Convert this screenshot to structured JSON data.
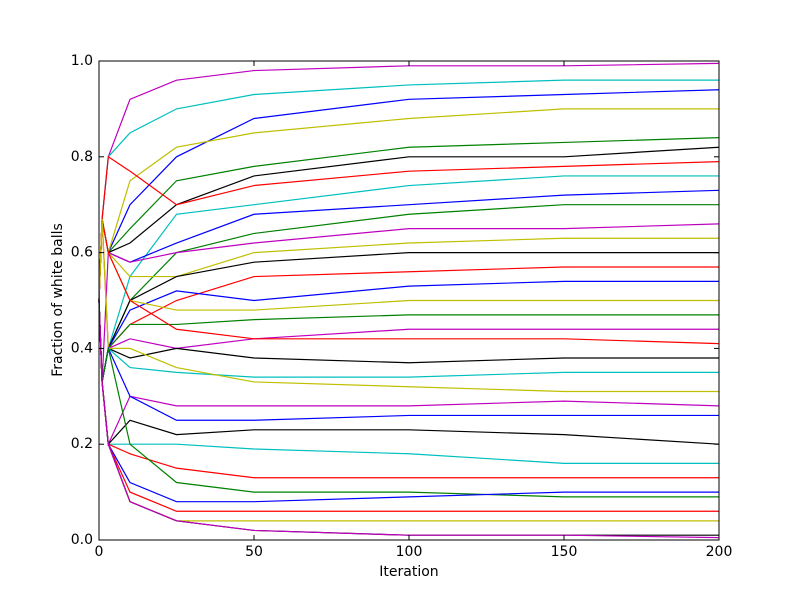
{
  "chart_data": {
    "type": "line",
    "xlabel": "Iteration",
    "ylabel": "Fraction of white balls",
    "x": [
      0,
      1,
      3,
      10,
      25,
      50,
      100,
      150,
      200
    ],
    "xlim": [
      0,
      200
    ],
    "xticks": [
      0,
      50,
      100,
      150,
      200
    ],
    "ylim": [
      0,
      1
    ],
    "yticks": [
      {
        "value": 0,
        "label": "0.0"
      },
      {
        "value": 0.2,
        "label": "0.2"
      },
      {
        "value": 0.4,
        "label": "0.4"
      },
      {
        "value": 0.6,
        "label": "0.6"
      },
      {
        "value": 0.8,
        "label": "0.8"
      },
      {
        "value": 1,
        "label": "1.0"
      }
    ],
    "series": [
      {
        "color": "#bf00bf",
        "values": [
          0.5,
          0.67,
          0.8,
          0.92,
          0.96,
          0.98,
          0.99,
          0.99,
          0.995
        ]
      },
      {
        "color": "#00bfbf",
        "values": [
          0.5,
          0.67,
          0.8,
          0.85,
          0.9,
          0.93,
          0.95,
          0.96,
          0.96
        ]
      },
      {
        "color": "#0000ff",
        "values": [
          0.5,
          0.67,
          0.6,
          0.7,
          0.8,
          0.88,
          0.92,
          0.93,
          0.94
        ]
      },
      {
        "color": "#bfbf00",
        "values": [
          0.5,
          0.67,
          0.6,
          0.75,
          0.82,
          0.85,
          0.88,
          0.9,
          0.9
        ]
      },
      {
        "color": "#008000",
        "values": [
          0.5,
          0.67,
          0.6,
          0.65,
          0.75,
          0.78,
          0.82,
          0.83,
          0.84
        ]
      },
      {
        "color": "#000000",
        "values": [
          0.5,
          0.67,
          0.6,
          0.62,
          0.7,
          0.76,
          0.8,
          0.8,
          0.82
        ]
      },
      {
        "color": "#ff0000",
        "values": [
          0.5,
          0.67,
          0.8,
          0.77,
          0.7,
          0.74,
          0.77,
          0.78,
          0.79
        ]
      },
      {
        "color": "#00bfbf",
        "values": [
          0.5,
          0.33,
          0.4,
          0.55,
          0.68,
          0.7,
          0.74,
          0.76,
          0.76
        ]
      },
      {
        "color": "#0000ff",
        "values": [
          0.5,
          0.67,
          0.6,
          0.58,
          0.62,
          0.68,
          0.7,
          0.72,
          0.73
        ]
      },
      {
        "color": "#008000",
        "values": [
          0.5,
          0.33,
          0.4,
          0.5,
          0.6,
          0.64,
          0.68,
          0.7,
          0.7
        ]
      },
      {
        "color": "#bf00bf",
        "values": [
          0.5,
          0.33,
          0.6,
          0.58,
          0.6,
          0.62,
          0.65,
          0.65,
          0.66
        ]
      },
      {
        "color": "#bfbf00",
        "values": [
          0.5,
          0.67,
          0.6,
          0.55,
          0.55,
          0.6,
          0.62,
          0.63,
          0.63
        ]
      },
      {
        "color": "#000000",
        "values": [
          0.5,
          0.33,
          0.4,
          0.5,
          0.55,
          0.58,
          0.6,
          0.6,
          0.6
        ]
      },
      {
        "color": "#ff0000",
        "values": [
          0.5,
          0.67,
          0.4,
          0.45,
          0.5,
          0.55,
          0.56,
          0.57,
          0.57
        ]
      },
      {
        "color": "#0000ff",
        "values": [
          0.5,
          0.33,
          0.4,
          0.48,
          0.52,
          0.5,
          0.53,
          0.54,
          0.54
        ]
      },
      {
        "color": "#bfbf00",
        "values": [
          0.5,
          0.67,
          0.6,
          0.5,
          0.48,
          0.48,
          0.5,
          0.5,
          0.5
        ]
      },
      {
        "color": "#008000",
        "values": [
          0.5,
          0.33,
          0.4,
          0.45,
          0.45,
          0.46,
          0.47,
          0.47,
          0.47
        ]
      },
      {
        "color": "#bf00bf",
        "values": [
          0.5,
          0.33,
          0.4,
          0.42,
          0.4,
          0.42,
          0.44,
          0.44,
          0.44
        ]
      },
      {
        "color": "#ff0000",
        "values": [
          0.5,
          0.67,
          0.6,
          0.5,
          0.44,
          0.42,
          0.42,
          0.42,
          0.41
        ]
      },
      {
        "color": "#000000",
        "values": [
          0.5,
          0.33,
          0.4,
          0.38,
          0.4,
          0.38,
          0.37,
          0.38,
          0.38
        ]
      },
      {
        "color": "#00bfbf",
        "values": [
          0.5,
          0.33,
          0.4,
          0.36,
          0.35,
          0.34,
          0.34,
          0.35,
          0.35
        ]
      },
      {
        "color": "#bfbf00",
        "values": [
          0.5,
          0.67,
          0.4,
          0.4,
          0.36,
          0.33,
          0.32,
          0.31,
          0.31
        ]
      },
      {
        "color": "#bf00bf",
        "values": [
          0.5,
          0.33,
          0.2,
          0.3,
          0.28,
          0.28,
          0.28,
          0.29,
          0.28
        ]
      },
      {
        "color": "#0000ff",
        "values": [
          0.5,
          0.33,
          0.4,
          0.3,
          0.25,
          0.25,
          0.26,
          0.26,
          0.26
        ]
      },
      {
        "color": "#000000",
        "values": [
          0.5,
          0.33,
          0.2,
          0.25,
          0.22,
          0.23,
          0.23,
          0.22,
          0.2
        ]
      },
      {
        "color": "#00bfbf",
        "values": [
          0.5,
          0.33,
          0.2,
          0.2,
          0.2,
          0.19,
          0.18,
          0.16,
          0.16
        ]
      },
      {
        "color": "#ff0000",
        "values": [
          0.5,
          0.33,
          0.2,
          0.18,
          0.15,
          0.13,
          0.13,
          0.13,
          0.13
        ]
      },
      {
        "color": "#008000",
        "values": [
          0.5,
          0.33,
          0.4,
          0.2,
          0.12,
          0.1,
          0.1,
          0.09,
          0.09
        ]
      },
      {
        "color": "#0000ff",
        "values": [
          0.5,
          0.33,
          0.2,
          0.12,
          0.08,
          0.08,
          0.09,
          0.1,
          0.1
        ]
      },
      {
        "color": "#ff0000",
        "values": [
          0.5,
          0.33,
          0.2,
          0.1,
          0.06,
          0.06,
          0.06,
          0.06,
          0.06
        ]
      },
      {
        "color": "#bfbf00",
        "values": [
          0.5,
          0.33,
          0.2,
          0.08,
          0.04,
          0.04,
          0.04,
          0.04,
          0.04
        ]
      },
      {
        "color": "#000000",
        "values": [
          0.5,
          0.33,
          0.2,
          0.08,
          0.04,
          0.02,
          0.01,
          0.01,
          0.01
        ]
      },
      {
        "color": "#bf00bf",
        "values": [
          0.5,
          0.33,
          0.2,
          0.08,
          0.04,
          0.02,
          0.01,
          0.01,
          0.005
        ]
      }
    ]
  }
}
